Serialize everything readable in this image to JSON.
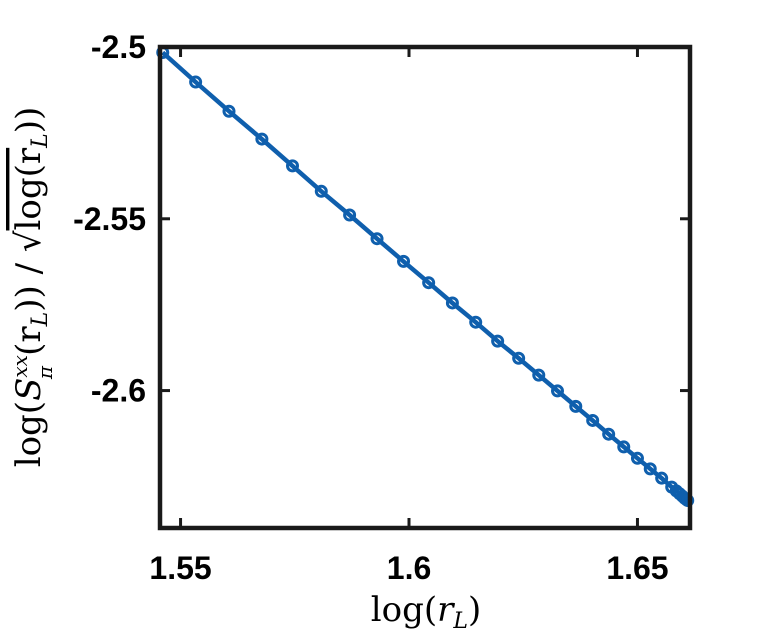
{
  "chart_data": {
    "type": "line",
    "title": "",
    "xlabel": {
      "fn": "log(",
      "var": "r",
      "sub": "L",
      "close": ")"
    },
    "ylabel": {
      "fn": "log(",
      "S": "S",
      "sup": "xx",
      "sub": "π",
      "arg": "(r",
      "argsub": "L",
      "argclose": ")",
      "div": ") / ",
      "sqrt": "√",
      "sqrtfn": "log(r",
      "sqrtsub": "L",
      "sqrtclose": ")",
      "end": ")"
    },
    "xlim": [
      1.5455,
      1.6615
    ],
    "ylim": [
      -2.64,
      -2.5
    ],
    "xticks": [
      1.55,
      1.6,
      1.65
    ],
    "xtick_labels": [
      "1.55",
      "1.6",
      "1.65"
    ],
    "yticks": [
      -2.5,
      -2.55,
      -2.6
    ],
    "ytick_labels": [
      "-2.5",
      "-2.55",
      "-2.6"
    ],
    "grid": false,
    "legend": null,
    "series": [
      {
        "color": "#0f5fad",
        "marker": "circle",
        "x": [
          1.5461,
          1.5533,
          1.5606,
          1.5678,
          1.5745,
          1.5808,
          1.587,
          1.593,
          1.5988,
          1.6043,
          1.6095,
          1.6146,
          1.6194,
          1.624,
          1.6284,
          1.6325,
          1.6365,
          1.6402,
          1.6437,
          1.647,
          1.65,
          1.6528,
          1.6553,
          1.6575,
          1.6585,
          1.6592,
          1.6598,
          1.6603,
          1.6607,
          1.661
        ],
        "y": [
          -2.5016,
          -2.5102,
          -2.5187,
          -2.5268,
          -2.5346,
          -2.542,
          -2.5489,
          -2.5558,
          -2.5624,
          -2.5686,
          -2.5745,
          -2.5801,
          -2.5856,
          -2.5906,
          -2.5955,
          -2.6001,
          -2.6046,
          -2.6087,
          -2.6127,
          -2.6164,
          -2.6197,
          -2.6228,
          -2.6255,
          -2.6281,
          -2.6292,
          -2.63,
          -2.6307,
          -2.6313,
          -2.6317,
          -2.632
        ]
      }
    ]
  }
}
